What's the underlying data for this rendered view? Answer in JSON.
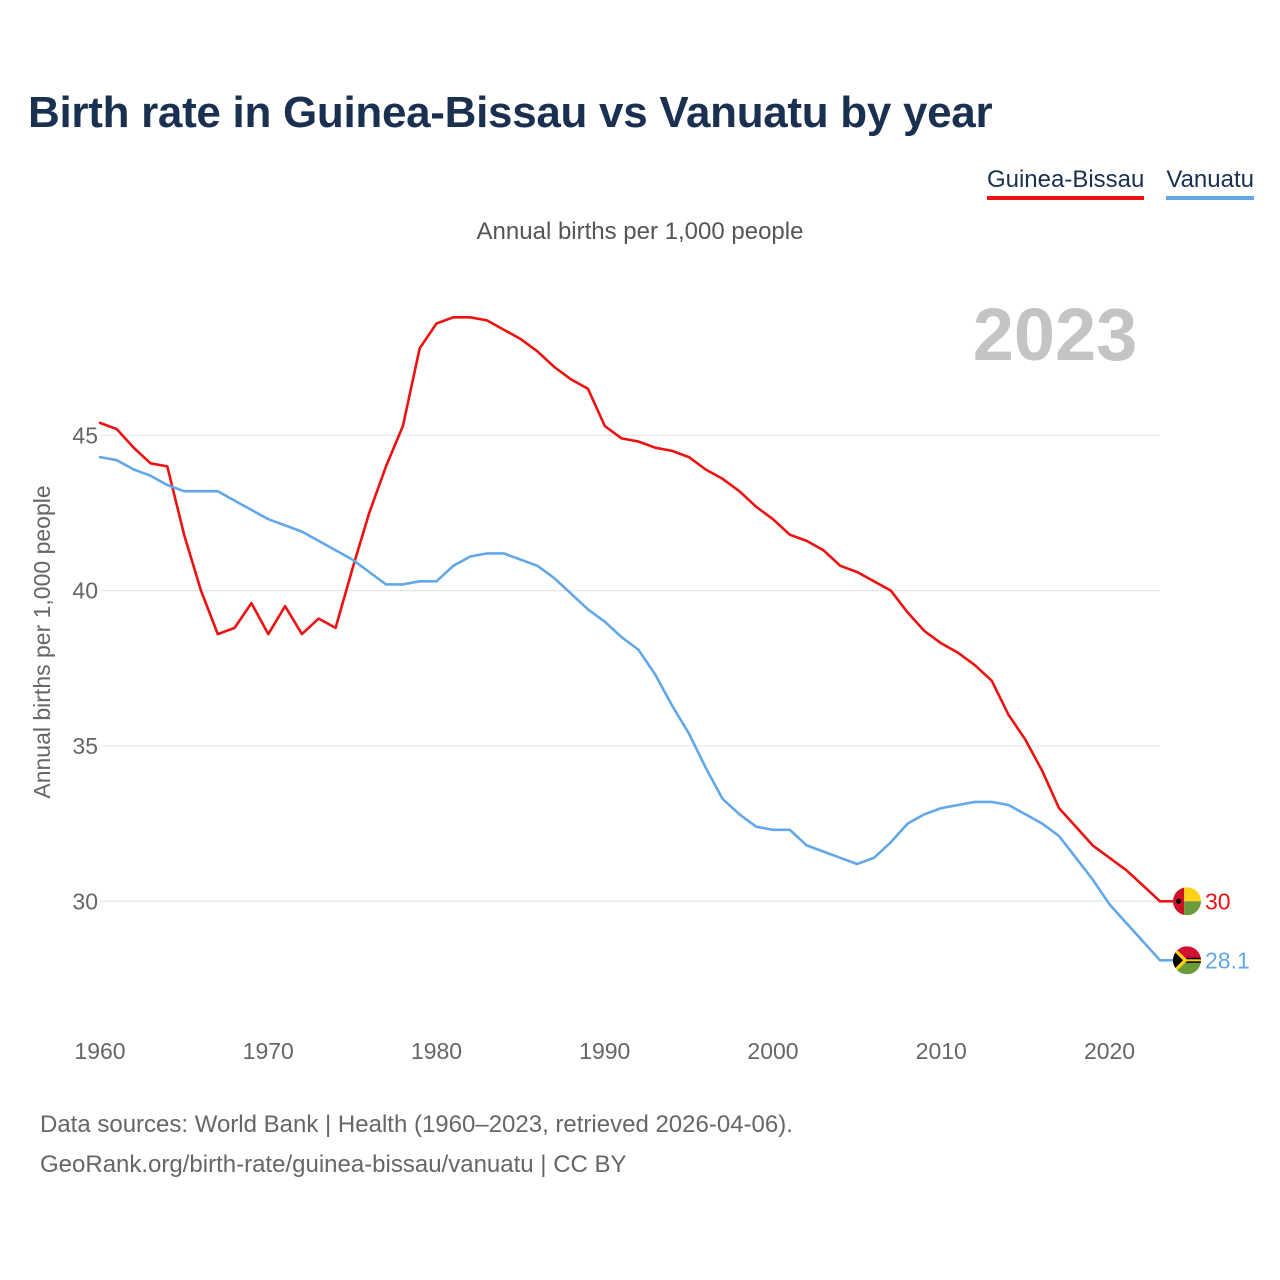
{
  "title": "Birth rate in Guinea-Bissau vs Vanuatu by year",
  "legend": [
    "Guinea-Bissau",
    "Vanuatu"
  ],
  "subtitle": "Annual births per 1,000 people",
  "year_watermark": "2023",
  "source": {
    "line1": "Data sources: World Bank | Health (1960–2023, retrieved 2026-04-06).",
    "line2": "GeoRank.org/birth-rate/guinea-bissau/vanuatu | CC BY"
  },
  "chart_data": {
    "type": "line",
    "title": "Birth rate in Guinea-Bissau vs Vanuatu by year",
    "xlabel": "",
    "ylabel": "Annual births per 1,000 people",
    "xlim": [
      1960,
      2023
    ],
    "ylim": [
      26.5,
      50
    ],
    "xticks": [
      1960,
      1970,
      1980,
      1990,
      2000,
      2010,
      2020
    ],
    "yticks": [
      30,
      35,
      40,
      45
    ],
    "x": [
      1960,
      1961,
      1962,
      1963,
      1964,
      1965,
      1966,
      1967,
      1968,
      1969,
      1970,
      1971,
      1972,
      1973,
      1974,
      1975,
      1976,
      1977,
      1978,
      1979,
      1980,
      1981,
      1982,
      1983,
      1984,
      1985,
      1986,
      1987,
      1988,
      1989,
      1990,
      1991,
      1992,
      1993,
      1994,
      1995,
      1996,
      1997,
      1998,
      1999,
      2000,
      2001,
      2002,
      2003,
      2004,
      2005,
      2006,
      2007,
      2008,
      2009,
      2010,
      2011,
      2012,
      2013,
      2014,
      2015,
      2016,
      2017,
      2018,
      2019,
      2020,
      2021,
      2022,
      2023
    ],
    "series": [
      {
        "name": "Guinea-Bissau",
        "color": "#ee1111",
        "end_label": "30",
        "values": [
          45.4,
          45.2,
          44.6,
          44.1,
          44.0,
          41.8,
          40.0,
          38.6,
          38.8,
          39.6,
          38.6,
          39.5,
          38.6,
          39.1,
          38.8,
          40.7,
          42.5,
          44.0,
          45.3,
          47.8,
          48.6,
          48.8,
          48.8,
          48.7,
          48.4,
          48.1,
          47.7,
          47.2,
          46.8,
          46.5,
          45.3,
          44.9,
          44.8,
          44.6,
          44.5,
          44.3,
          43.9,
          43.6,
          43.2,
          42.7,
          42.3,
          41.8,
          41.6,
          41.3,
          40.8,
          40.6,
          40.3,
          40.0,
          39.3,
          38.7,
          38.3,
          38.0,
          37.6,
          37.1,
          36.0,
          35.2,
          34.2,
          33.0,
          32.4,
          31.8,
          31.4,
          31.0,
          30.5,
          30.0
        ]
      },
      {
        "name": "Vanuatu",
        "color": "#62a8e8",
        "end_label": "28.1",
        "values": [
          44.3,
          44.2,
          43.9,
          43.7,
          43.4,
          43.2,
          43.2,
          43.2,
          42.9,
          42.6,
          42.3,
          42.1,
          41.9,
          41.6,
          41.3,
          41.0,
          40.6,
          40.2,
          40.2,
          40.3,
          40.3,
          40.8,
          41.1,
          41.2,
          41.2,
          41.0,
          40.8,
          40.4,
          39.9,
          39.4,
          39.0,
          38.5,
          38.1,
          37.3,
          36.3,
          35.4,
          34.3,
          33.3,
          32.8,
          32.4,
          32.3,
          32.3,
          31.8,
          31.6,
          31.4,
          31.2,
          31.4,
          31.9,
          32.5,
          32.8,
          33.0,
          33.1,
          33.2,
          33.2,
          33.1,
          32.8,
          32.5,
          32.1,
          31.4,
          30.7,
          29.9,
          29.3,
          28.7,
          28.1
        ]
      }
    ]
  }
}
